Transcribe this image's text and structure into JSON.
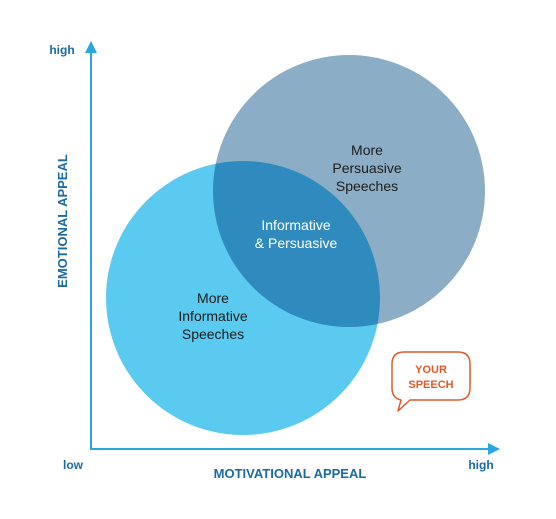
{
  "axes": {
    "y_axis_title": "EMOTIONAL APPEAL",
    "x_axis_title": "MOTIVATIONAL APPEAL",
    "y_high_label": "high",
    "x_low_label": "low",
    "x_high_label": "high",
    "axis_color": "#29a8e0"
  },
  "circles": {
    "informative": {
      "line1": "More",
      "line2": "Informative",
      "line3": "Speeches",
      "fill": "#5bcaf0"
    },
    "persuasive": {
      "line1": "More",
      "line2": "Persuasive",
      "line3": "Speeches",
      "fill": "#8badc6"
    },
    "overlap": {
      "line1": "Informative",
      "line2": "& Persuasive",
      "fill": "#2f8bbd"
    }
  },
  "callout": {
    "line1": "YOUR",
    "line2": "SPEECH",
    "color": "#e05a2b"
  },
  "colors": {
    "text_dark": "#1d1d1b",
    "axis_title": "#1a6aa3"
  }
}
